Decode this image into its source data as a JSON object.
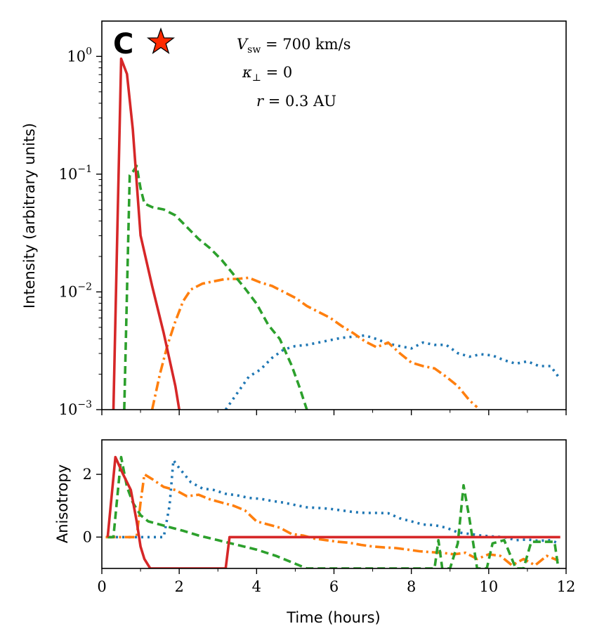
{
  "chart_data": [
    {
      "type": "line",
      "panel": "top",
      "panel_label": "C",
      "ylabel": "Intensity (arbitrary units)",
      "yscale": "log",
      "xlim": [
        0,
        12
      ],
      "ylim_exp": [
        -3,
        0.3
      ],
      "y_ticks": [
        {
          "base": "10",
          "exp": "0",
          "value_exp": 0
        },
        {
          "base": "10",
          "exp": "−1",
          "value_exp": -1
        },
        {
          "base": "10",
          "exp": "−2",
          "value_exp": -2
        },
        {
          "base": "10",
          "exp": "−3",
          "value_exp": -3
        }
      ],
      "annotations": [
        {
          "var": "V",
          "sub": "sw",
          "text": " = 700 km/s"
        },
        {
          "var": "κ",
          "sub": "⊥",
          "text": " = 0"
        },
        {
          "var": "r",
          "sub": "",
          "text": " = 0.3 AU"
        }
      ],
      "series": [
        {
          "name": "blue-dotted",
          "color": "#1f77b4",
          "dash": "3,6",
          "x": [
            3.2,
            3.5,
            3.8,
            4.1,
            4.4,
            4.7,
            5.0,
            5.3,
            5.6,
            5.9,
            6.2,
            6.5,
            6.8,
            7.1,
            7.4,
            7.7,
            8.0,
            8.3,
            8.6,
            8.9,
            9.2,
            9.5,
            9.8,
            10.1,
            10.4,
            10.7,
            11.0,
            11.3,
            11.6,
            11.8
          ],
          "y_log10": [
            -3.0,
            -2.86,
            -2.72,
            -2.66,
            -2.56,
            -2.49,
            -2.46,
            -2.45,
            -2.43,
            -2.41,
            -2.39,
            -2.38,
            -2.37,
            -2.4,
            -2.44,
            -2.46,
            -2.48,
            -2.43,
            -2.45,
            -2.45,
            -2.52,
            -2.55,
            -2.53,
            -2.54,
            -2.58,
            -2.61,
            -2.59,
            -2.63,
            -2.63,
            -2.72
          ]
        },
        {
          "name": "orange-dashdot",
          "color": "#ff7f0e",
          "dash": "14,5,3,5",
          "x": [
            1.3,
            1.5,
            1.7,
            1.9,
            2.1,
            2.3,
            2.6,
            2.9,
            3.2,
            3.5,
            3.8,
            4.1,
            4.4,
            4.7,
            5.0,
            5.3,
            5.6,
            5.9,
            6.2,
            6.5,
            6.8,
            7.1,
            7.4,
            7.7,
            8.0,
            8.3,
            8.6,
            8.9,
            9.2,
            9.5,
            9.7
          ],
          "y_log10": [
            -3.0,
            -2.7,
            -2.45,
            -2.25,
            -2.08,
            -1.98,
            -1.93,
            -1.91,
            -1.89,
            -1.89,
            -1.88,
            -1.92,
            -1.95,
            -2.0,
            -2.05,
            -2.12,
            -2.17,
            -2.22,
            -2.29,
            -2.35,
            -2.42,
            -2.47,
            -2.43,
            -2.52,
            -2.6,
            -2.63,
            -2.65,
            -2.72,
            -2.8,
            -2.92,
            -2.98
          ]
        },
        {
          "name": "green-dashed",
          "color": "#2ca02c",
          "dash": "11,6",
          "x": [
            0.58,
            0.65,
            0.72,
            0.8,
            0.9,
            1.0,
            1.1,
            1.3,
            1.6,
            1.9,
            2.2,
            2.5,
            2.8,
            3.1,
            3.4,
            3.7,
            4.0,
            4.3,
            4.6,
            4.9,
            5.1,
            5.3
          ],
          "y_log10": [
            -3.0,
            -2.0,
            -1.01,
            -0.98,
            -0.93,
            -1.12,
            -1.25,
            -1.28,
            -1.3,
            -1.35,
            -1.45,
            -1.55,
            -1.63,
            -1.73,
            -1.85,
            -1.97,
            -2.1,
            -2.28,
            -2.4,
            -2.62,
            -2.8,
            -3.0
          ]
        },
        {
          "name": "red-solid",
          "color": "#d62728",
          "dash": "",
          "x": [
            0.3,
            0.4,
            0.5,
            0.65,
            0.8,
            1.0,
            1.3,
            1.6,
            1.9,
            2.0
          ],
          "y_log10": [
            -3.0,
            -1.5,
            -0.02,
            -0.15,
            -0.62,
            -1.52,
            -1.95,
            -2.35,
            -2.8,
            -3.0
          ]
        }
      ]
    },
    {
      "type": "line",
      "panel": "bottom",
      "xlabel": "Time (hours)",
      "ylabel": "Anisotropy",
      "xlim": [
        0,
        12
      ],
      "ylim": [
        -1,
        3.1
      ],
      "x_ticks": [
        "0",
        "2",
        "4",
        "6",
        "8",
        "10",
        "12"
      ],
      "y_ticks": [
        "0",
        "2"
      ],
      "series": [
        {
          "name": "blue-dotted",
          "color": "#1f77b4",
          "dash": "3,6",
          "x": [
            0.2,
            1.6,
            1.75,
            1.85,
            2.0,
            2.3,
            2.6,
            2.9,
            3.2,
            3.5,
            3.8,
            4.1,
            4.4,
            4.7,
            5.0,
            5.3,
            5.6,
            5.9,
            6.2,
            6.5,
            6.8,
            7.1,
            7.4,
            7.7,
            8.0,
            8.3,
            8.6,
            8.9,
            9.2,
            9.5,
            9.8,
            10.1,
            10.4,
            10.7,
            11.0,
            11.3,
            11.6,
            11.8
          ],
          "y": [
            0,
            0,
            1.0,
            2.45,
            2.2,
            1.75,
            1.55,
            1.5,
            1.38,
            1.33,
            1.25,
            1.22,
            1.15,
            1.1,
            1.02,
            0.95,
            0.93,
            0.9,
            0.85,
            0.8,
            0.77,
            0.77,
            0.76,
            0.6,
            0.5,
            0.4,
            0.38,
            0.3,
            0.15,
            0.1,
            0.05,
            0.02,
            0.0,
            -0.1,
            -0.08,
            -0.12,
            -0.1,
            -0.2
          ]
        },
        {
          "name": "orange-dashdot",
          "color": "#ff7f0e",
          "dash": "14,5,3,5",
          "x": [
            0.1,
            0.9,
            1.0,
            1.1,
            1.3,
            1.6,
            1.9,
            2.2,
            2.5,
            2.8,
            3.1,
            3.4,
            3.7,
            4.0,
            4.3,
            4.6,
            4.9,
            5.2,
            5.5,
            5.8,
            6.1,
            6.4,
            6.7,
            7.0,
            7.3,
            7.6,
            7.9,
            8.2,
            8.5,
            8.8,
            9.1,
            9.4,
            9.7,
            10.0,
            10.3,
            10.6,
            10.9,
            11.2,
            11.5,
            11.8
          ],
          "y": [
            0,
            0,
            1.1,
            2.0,
            1.85,
            1.6,
            1.5,
            1.3,
            1.35,
            1.2,
            1.1,
            1.0,
            0.85,
            0.5,
            0.4,
            0.3,
            0.1,
            0.05,
            -0.05,
            -0.1,
            -0.15,
            -0.18,
            -0.25,
            -0.3,
            -0.33,
            -0.35,
            -0.4,
            -0.45,
            -0.48,
            -0.5,
            -0.55,
            -0.5,
            -0.7,
            -0.55,
            -0.6,
            -0.9,
            -0.7,
            -0.9,
            -0.6,
            -0.75
          ]
        },
        {
          "name": "green-dashed",
          "color": "#2ca02c",
          "dash": "11,6",
          "x": [
            0.15,
            0.3,
            0.5,
            0.65,
            0.8,
            1.0,
            1.2,
            1.5,
            1.8,
            2.1,
            2.5,
            3.0,
            3.5,
            4.0,
            4.5,
            5.0,
            5.3,
            5.8,
            6.0,
            6.3,
            6.8,
            7.3,
            7.8,
            8.3,
            8.6,
            8.7,
            8.8,
            9.0,
            9.2,
            9.35,
            9.5,
            9.7,
            9.95,
            10.1,
            10.4,
            10.7,
            10.9,
            11.1,
            11.5,
            11.7,
            11.8
          ],
          "y": [
            0,
            0,
            2.55,
            1.6,
            1.1,
            0.7,
            0.5,
            0.4,
            0.3,
            0.2,
            0.05,
            -0.1,
            -0.25,
            -0.4,
            -0.6,
            -0.85,
            -1.0,
            -1.0,
            -1.0,
            -1.0,
            -1.0,
            -1.0,
            -1.0,
            -1.0,
            -1.0,
            -0.1,
            -1.0,
            -1.0,
            -0.2,
            1.65,
            0.6,
            -1.0,
            -1.0,
            -0.2,
            -0.1,
            -1.0,
            -1.0,
            -0.15,
            -0.15,
            -0.15,
            -1.0
          ]
        },
        {
          "name": "red-solid",
          "color": "#d62728",
          "dash": "",
          "x": [
            0.15,
            0.35,
            0.55,
            0.75,
            0.9,
            1.0,
            1.1,
            1.25,
            3.2,
            3.3,
            11.85
          ],
          "y": [
            0,
            2.55,
            2.0,
            1.5,
            0.5,
            -0.3,
            -0.7,
            -1.0,
            -1.0,
            0,
            0
          ]
        }
      ]
    }
  ]
}
